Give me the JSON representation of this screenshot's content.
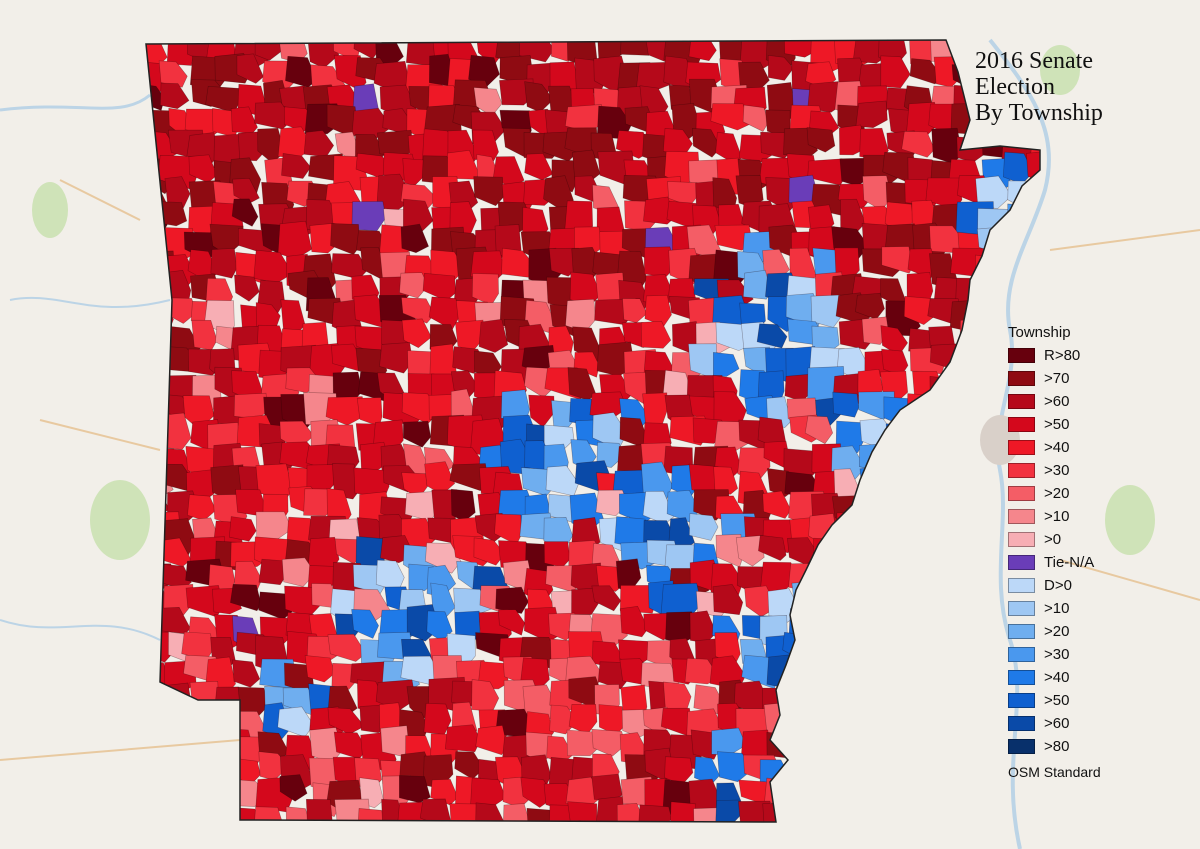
{
  "title": {
    "line1": "2016 Senate",
    "line2": "Election",
    "line3": "By Township"
  },
  "legend": {
    "heading": "Township",
    "items": [
      {
        "label": "R>80",
        "color": "#67000d"
      },
      {
        "label": ">70",
        "color": "#8f0b12"
      },
      {
        "label": ">60",
        "color": "#b5091a"
      },
      {
        "label": ">50",
        "color": "#d4081c"
      },
      {
        "label": ">40",
        "color": "#ee1826"
      },
      {
        "label": ">30",
        "color": "#f2323f"
      },
      {
        "label": ">20",
        "color": "#f45d66"
      },
      {
        "label": ">10",
        "color": "#f5868c"
      },
      {
        "label": ">0",
        "color": "#f7aeb4"
      },
      {
        "label": "Tie-N/A",
        "color": "#6a3db8"
      },
      {
        "label": "D>0",
        "color": "#bcd8f8"
      },
      {
        "label": ">10",
        "color": "#9ec7f3"
      },
      {
        "label": ">20",
        "color": "#6faeef"
      },
      {
        "label": ">30",
        "color": "#4a98ee"
      },
      {
        "label": ">40",
        "color": "#1f7ae8"
      },
      {
        "label": ">50",
        "color": "#0f60d0"
      },
      {
        "label": ">60",
        "color": "#0a4aa8"
      },
      {
        "label": ">80",
        "color": "#08306b"
      }
    ],
    "footer": "OSM Standard"
  }
}
